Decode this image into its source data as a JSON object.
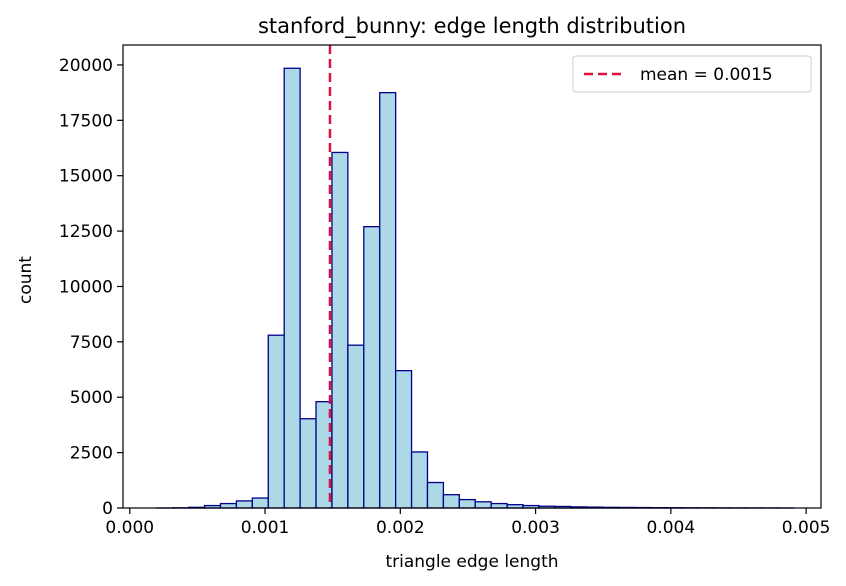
{
  "chart_data": {
    "type": "bar",
    "title": "stanford_bunny: edge length distribution",
    "xlabel": "triangle edge length",
    "ylabel": "count",
    "xlim": [
      -5e-05,
      0.00511
    ],
    "ylim": [
      0,
      20900
    ],
    "x_ticks": [
      0.0,
      0.001,
      0.002,
      0.003,
      0.004,
      0.005
    ],
    "x_tick_labels": [
      "0.000",
      "0.001",
      "0.002",
      "0.003",
      "0.004",
      "0.005"
    ],
    "y_ticks": [
      0,
      2500,
      5000,
      7500,
      10000,
      12500,
      15000,
      17500,
      20000
    ],
    "y_tick_labels": [
      "0",
      "2500",
      "5000",
      "7500",
      "10000",
      "12500",
      "15000",
      "17500",
      "20000"
    ],
    "bin_start": 0.0002,
    "bin_width": 0.0001177,
    "counts": [
      2,
      10,
      30,
      110,
      200,
      320,
      450,
      7800,
      19850,
      4030,
      4800,
      16050,
      7350,
      12700,
      18750,
      6200,
      2530,
      1150,
      600,
      380,
      280,
      200,
      150,
      110,
      80,
      70,
      50,
      40,
      30,
      25,
      20,
      15,
      12,
      10,
      8,
      6,
      5,
      4,
      3,
      2
    ],
    "bar_fill": "#add8e6",
    "bar_edge": "#00008b",
    "mean_line": {
      "value": 0.00148,
      "label": "mean = 0.0015",
      "color": "#dc143c"
    },
    "legend": {
      "position": "upper-right",
      "entry": "mean = 0.0015"
    },
    "grid": false
  }
}
